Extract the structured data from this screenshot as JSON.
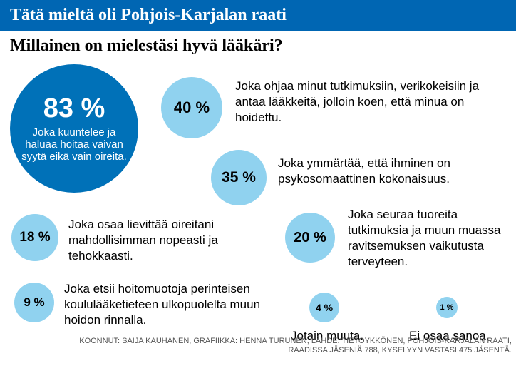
{
  "header": {
    "title": "Tätä mieltä oli Pohjois-Karjalan raati",
    "subtitle": "Millainen on mielestäsi hyvä lääkäri?",
    "bar_bg": "#0066b3",
    "bar_text_color": "#ffffff"
  },
  "bubbles": {
    "big": {
      "pct": "83 %",
      "label": "Joka kuuntelee ja haluaa hoitaa vaivan syytä eikä vain oireita.",
      "bg": "#0071b8",
      "text_color": "#ffffff"
    },
    "light_bg": "#90d2ef",
    "light_text": "#000000",
    "items": {
      "b40": {
        "pct": "40 %",
        "text": "Joka ohjaa minut tutkimuksiin, verikokeisiin ja antaa lääkkeitä, jolloin koen, että minua on hoidettu."
      },
      "b35": {
        "pct": "35 %",
        "text": "Joka ymmärtää, että ihminen on psykosomaattinen kokonaisuus."
      },
      "b18": {
        "pct": "18 %",
        "text": "Joka osaa lievittää oireitani mahdollisimman nopeasti ja tehokkaasti."
      },
      "b20": {
        "pct": "20 %",
        "text": "Joka seuraa tuoreita tutkimuksia ja muun muassa ravitsemuksen vaikutusta terveyteen."
      },
      "b9": {
        "pct": "9 %",
        "text": "Joka etsii hoitomuotoja perinteisen koululääketieteen ulkopuolelta muun hoidon rinnalla."
      },
      "b4": {
        "pct": "4 %",
        "text": "Jotain muuta."
      },
      "b1": {
        "pct": "1 %",
        "text": "Ei osaa sanoa."
      }
    }
  },
  "footnote": "KOONNUT: SAIJA KAUHANEN, GRAFIIKKA: HENNA TURUNEN, LÄHDE: TIETOYKKÖNEN, POHJOIS-KARJALAN RAATI, RAADISSA JÄSENIÄ 788, KYSELYYN VASTASI 475 JÄSENTÄ.",
  "style": {
    "body_font": "Arial, Helvetica, sans-serif",
    "title_font": "Georgia, 'Times New Roman', serif",
    "background": "#ffffff",
    "text_color": "#000000",
    "footnote_color": "#555555"
  }
}
